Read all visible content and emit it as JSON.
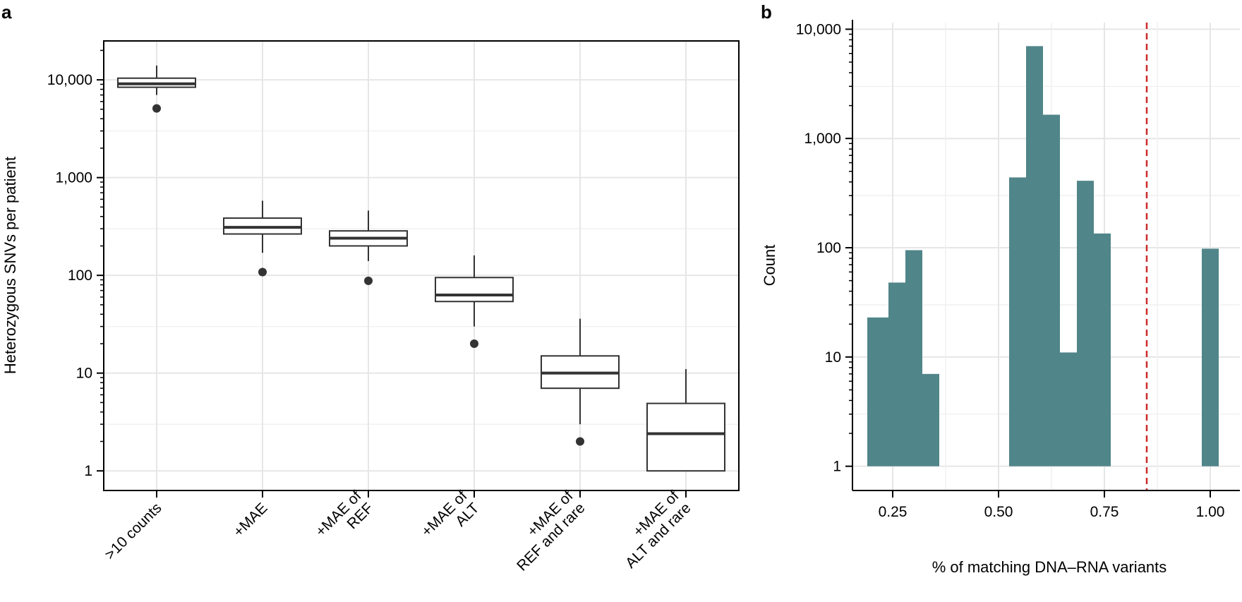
{
  "chart_data": [
    {
      "panel": "a",
      "type": "box",
      "title": "",
      "xlabel": "",
      "ylabel": "Heterozygous SNVs per patient",
      "yscale": "log",
      "ylim": [
        0.63,
        25000
      ],
      "yticks": [
        1,
        10,
        100,
        1000,
        10000
      ],
      "ytick_labels": [
        "1",
        "10",
        "100",
        "1,000",
        "10,000"
      ],
      "grid": true,
      "categories": [
        {
          "lines": [
            ">10 counts"
          ]
        },
        {
          "lines": [
            "+MAE"
          ]
        },
        {
          "lines": [
            "+MAE of",
            "REF"
          ]
        },
        {
          "lines": [
            "+MAE of",
            "ALT"
          ]
        },
        {
          "lines": [
            "+MAE of",
            "REF and rare"
          ]
        },
        {
          "lines": [
            "+MAE of",
            "ALT and rare"
          ]
        }
      ],
      "boxes": [
        {
          "whisker_low": 7000,
          "q1": 8400,
          "median": 9100,
          "q3": 10400,
          "whisker_high": 14000,
          "outliers": [
            5100
          ]
        },
        {
          "whisker_low": 170,
          "q1": 265,
          "median": 310,
          "q3": 385,
          "whisker_high": 580,
          "outliers": [
            108
          ]
        },
        {
          "whisker_low": 140,
          "q1": 200,
          "median": 240,
          "q3": 285,
          "whisker_high": 460,
          "outliers": [
            88
          ]
        },
        {
          "whisker_low": 30,
          "q1": 54,
          "median": 63,
          "q3": 95,
          "whisker_high": 160,
          "outliers": [
            20
          ]
        },
        {
          "whisker_low": 3,
          "q1": 7,
          "median": 10,
          "q3": 15,
          "whisker_high": 36,
          "outliers": [
            2
          ]
        },
        {
          "whisker_low": 1,
          "q1": 1,
          "median": 2.4,
          "q3": 4.9,
          "whisker_high": 11,
          "outliers": []
        }
      ]
    },
    {
      "panel": "b",
      "type": "histogram",
      "title": "",
      "xlabel": "% of matching DNA–RNA variants",
      "ylabel": "Count",
      "yscale": "log",
      "xlim": [
        0.155,
        1.07
      ],
      "ylim": [
        0.6,
        11500
      ],
      "xticks": [
        0.25,
        0.5,
        0.75,
        1.0
      ],
      "xtick_labels": [
        "0.25",
        "0.50",
        "0.75",
        "1.00"
      ],
      "yticks": [
        1,
        10,
        100,
        1000,
        10000
      ],
      "ytick_labels": [
        "1",
        "10",
        "100",
        "1,000",
        "10,000"
      ],
      "grid": true,
      "bar_color": "#508589",
      "bins": [
        {
          "x0": 0.19,
          "x1": 0.24,
          "count": 23
        },
        {
          "x0": 0.24,
          "x1": 0.28,
          "count": 48
        },
        {
          "x0": 0.28,
          "x1": 0.32,
          "count": 95
        },
        {
          "x0": 0.32,
          "x1": 0.36,
          "count": 7
        },
        {
          "x0": 0.525,
          "x1": 0.565,
          "count": 440
        },
        {
          "x0": 0.565,
          "x1": 0.605,
          "count": 7000
        },
        {
          "x0": 0.605,
          "x1": 0.645,
          "count": 1650
        },
        {
          "x0": 0.645,
          "x1": 0.685,
          "count": 11
        },
        {
          "x0": 0.685,
          "x1": 0.725,
          "count": 410
        },
        {
          "x0": 0.725,
          "x1": 0.765,
          "count": 135
        },
        {
          "x0": 0.98,
          "x1": 1.02,
          "count": 98
        }
      ],
      "reference_line": {
        "x": 0.85,
        "color": "#cc2a2a",
        "style": "dashed"
      }
    }
  ]
}
